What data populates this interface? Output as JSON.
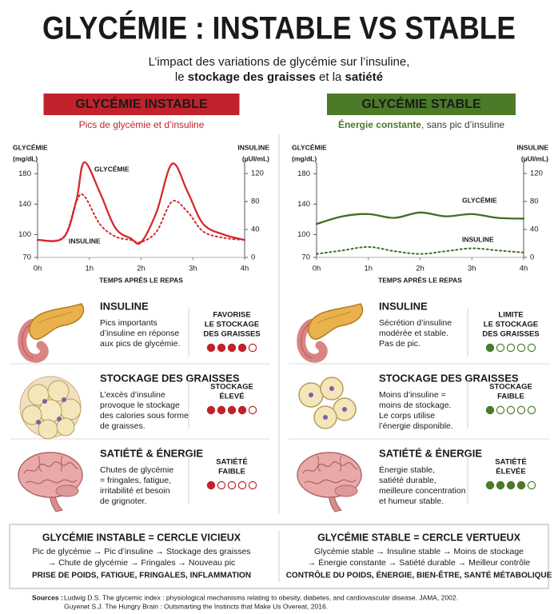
{
  "title": "GLYCÉMIE : INSTABLE VS STABLE",
  "subtitle": {
    "line1": "L’impact des variations de glycémie sur l’insuline,",
    "line2": [
      "le ",
      "stockage des graisses",
      " et la ",
      "satiété"
    ]
  },
  "panels": [
    {
      "header": "GLYCÉMIE INSTABLE",
      "color": "#c1222b",
      "tagline": [
        "Pics de glycémie",
        " et d’insuline"
      ],
      "cards": [
        {
          "heading": "INSULINE",
          "body": [
            "Pics importants",
            "d’insuline en réponse",
            "aux pics de glycémie."
          ],
          "rating_label": [
            "FAVORISE",
            "LE STOCKAGE",
            "DES GRAISSES"
          ],
          "rating": 4,
          "rating_max": 5
        },
        {
          "heading": "STOCKAGE DES GRAISSES",
          "body": [
            "L’excès d’insuline",
            "provoque le stockage",
            "des calories sous forme",
            "de graisses."
          ],
          "rating_label": [
            "STOCKAGE",
            "ÉLEVÉ"
          ],
          "rating": 4,
          "rating_max": 5
        },
        {
          "heading": "SATIÉTÉ & ÉNERGIE",
          "body": [
            "Chutes de glycémie",
            "= fringales, fatigue,",
            "irritabilité et besoin",
            "de grignoter."
          ],
          "rating_label": [
            "SATIÉTÉ",
            "FAIBLE"
          ],
          "rating": 1,
          "rating_max": 5
        }
      ],
      "summary": {
        "title": "GLYCÉMIE INSTABLE = CERCLE VICIEUX",
        "lines": [
          "Pic de glycémie → Pic d’insuline → Stockage des graisses",
          "→ Chute de glycémie → Fringales → Nouveau pic"
        ],
        "conclusion": "PRISE DE POIDS, FATIGUE, FRINGALES, INFLAMMATION"
      }
    },
    {
      "header": "GLYCÉMIE STABLE",
      "color": "#4b7a28",
      "tagline": [
        "Énergie constante",
        ", sans pic d’insuline"
      ],
      "cards": [
        {
          "heading": "INSULINE",
          "body": [
            "Sécrétion d’insuline",
            "modérée et stable.",
            "Pas de pic."
          ],
          "rating_label": [
            "LIMITE",
            "LE STOCKAGE",
            "DES GRAISSES"
          ],
          "rating": 1,
          "rating_max": 5
        },
        {
          "heading": "STOCKAGE DES GRAISSES",
          "body": [
            "Moins d’insuline =",
            "moins de stockage.",
            "Le corps utilise",
            "l’énergie disponible."
          ],
          "rating_label": [
            "STOCKAGE",
            "FAIBLE"
          ],
          "rating": 1,
          "rating_max": 5
        },
        {
          "heading": "SATIÉTÉ & ÉNERGIE",
          "body": [
            "Énergie stable,",
            "satiété durable,",
            "meilleure concentration",
            "et humeur stable."
          ],
          "rating_label": [
            "SATIÉTÉ",
            "ÉLEVÉE"
          ],
          "rating": 4,
          "rating_max": 5
        }
      ],
      "summary": {
        "title": "GLYCÉMIE STABLE = CERCLE VERTUEUX",
        "lines": [
          "Glycémie stable → Insuline stable → Moins de stockage",
          "→ Énergie constante → Satiété durable → Meilleur contrôle"
        ],
        "conclusion": "CONTRÔLE DU POIDS, ÉNERGIE, BIEN-ÊTRE, SANTÉ MÉTABOLIQUE"
      }
    }
  ],
  "chart_data": [
    {
      "type": "line",
      "ylabel": [
        "GLYCÉMIE",
        "(mg/dL)"
      ],
      "y2label": [
        "INSULINE",
        "(µUI/mL)"
      ],
      "xlabel": "TEMPS APRÈS LE REPAS",
      "x": [
        0,
        0.5,
        0.75,
        0.9,
        1.2,
        1.5,
        1.8,
        2,
        2.3,
        2.6,
        2.9,
        3.2,
        3.6,
        4
      ],
      "xlim": [
        0,
        4
      ],
      "xticks": [
        {
          "value": 0,
          "label": "0h"
        },
        {
          "value": 1,
          "label": "1h"
        },
        {
          "value": 2,
          "label": "2h"
        },
        {
          "value": 3,
          "label": "3h"
        },
        {
          "value": 4,
          "label": "4h"
        }
      ],
      "ylim": [
        70,
        195
      ],
      "yticks": [
        70,
        100,
        140,
        180
      ],
      "y2lim": [
        0,
        136
      ],
      "y2ticks": [
        0,
        40,
        80,
        120
      ],
      "series": [
        {
          "name": "GLYCÉMIE",
          "color": "#d42a2f",
          "dashed": false,
          "values": [
            93,
            96,
            145,
            195,
            156,
            109,
            95,
            90,
            130,
            193,
            156,
            114,
            100,
            93
          ]
        },
        {
          "name": "INSULINE",
          "color": "#d42a2f",
          "dashed": true,
          "axis": "y2",
          "values": [
            25,
            29,
            80,
            88,
            48,
            30,
            25,
            22,
            37,
            80,
            65,
            37,
            28,
            25
          ]
        }
      ]
    },
    {
      "type": "line",
      "ylabel": [
        "GLYCÉMIE",
        "(mg/dL)"
      ],
      "y2label": [
        "INSULINE",
        "(µUI/mL)"
      ],
      "xlabel": "TEMPS APRÈS LE REPAS",
      "x": [
        0,
        0.5,
        1,
        1.5,
        2,
        2.5,
        3,
        3.5,
        4
      ],
      "xlim": [
        0,
        4
      ],
      "xticks": [
        {
          "value": 0,
          "label": "0h"
        },
        {
          "value": 1,
          "label": "1h"
        },
        {
          "value": 2,
          "label": "2h"
        },
        {
          "value": 3,
          "label": "3h"
        },
        {
          "value": 4,
          "label": "4h"
        }
      ],
      "ylim": [
        70,
        195
      ],
      "yticks": [
        70,
        100,
        140,
        180
      ],
      "y2lim": [
        0,
        136
      ],
      "y2ticks": [
        0,
        40,
        80,
        120
      ],
      "series": [
        {
          "name": "GLYCÉMIE",
          "color": "#3f6e24",
          "dashed": false,
          "values": [
            114,
            124,
            127,
            122,
            129,
            124,
            127,
            122,
            121
          ]
        },
        {
          "name": "INSULINE",
          "color": "#3f6e24",
          "dashed": true,
          "axis": "y2",
          "values": [
            5,
            10,
            15,
            9,
            5,
            9,
            13,
            10,
            7
          ]
        }
      ]
    }
  ],
  "sources": {
    "label": "Sources :",
    "items": [
      "Ludwig D.S. The glycemic index : physiological mechanisms relating to obesity, diabetes, and cardiovascular disease. JAMA, 2002.",
      "Guyenet S.J. The Hungry Brain : Outsmarting the Instincts that Make Us Overeat, 2016."
    ]
  }
}
